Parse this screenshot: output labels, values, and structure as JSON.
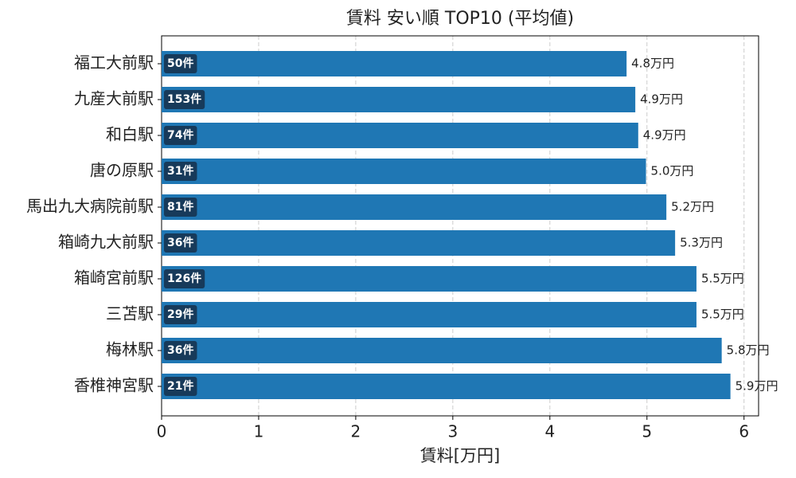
{
  "chart_data": {
    "type": "barh",
    "title": "賃料 安い順 TOP10 (平均値)",
    "x_label": "賃料[万円]",
    "categories": [
      "福工大前駅",
      "九産大前駅",
      "和白駅",
      "唐の原駅",
      "馬出九大病院前駅",
      "箱崎九大前駅",
      "箱崎宮前駅",
      "三苫駅",
      "梅林駅",
      "香椎神宮駅"
    ],
    "values": [
      4.79,
      4.88,
      4.91,
      4.99,
      5.2,
      5.29,
      5.51,
      5.51,
      5.77,
      5.86
    ],
    "value_labels": [
      "4.8万円",
      "4.9万円",
      "4.9万円",
      "5.0万円",
      "5.2万円",
      "5.3万円",
      "5.5万円",
      "5.5万円",
      "5.8万円",
      "5.9万円"
    ],
    "counts": [
      50,
      153,
      74,
      31,
      81,
      36,
      126,
      29,
      36,
      21
    ],
    "count_labels": [
      "50件",
      "153件",
      "74件",
      "31件",
      "81件",
      "36件",
      "126件",
      "29件",
      "36件",
      "21件"
    ],
    "color": "#1f77b4",
    "badge_color": "#173a5a",
    "xlim": [
      0,
      6.15
    ],
    "xticks": [
      0,
      1,
      2,
      3,
      4,
      5,
      6
    ],
    "grid": true
  }
}
